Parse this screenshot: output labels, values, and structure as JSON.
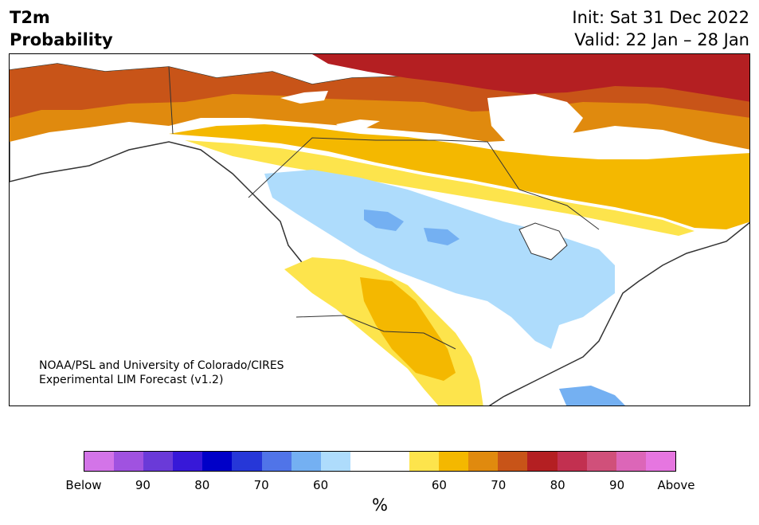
{
  "header": {
    "title_line1": "T2m",
    "title_line2": "Probability",
    "init": "Init: Sat 31 Dec 2022",
    "valid": "Valid: 22 Jan – 28 Jan"
  },
  "credit": {
    "line1": "NOAA/PSL and University of Colorado/CIRES",
    "line2": "Experimental LIM Forecast (v1.2)"
  },
  "colorbar": {
    "colors": [
      "#d374e8",
      "#a052e0",
      "#6a3ad8",
      "#3718d8",
      "#0000c8",
      "#2637d8",
      "#5074e8",
      "#74b0f2",
      "#aedcfc",
      "#ffffff",
      "#ffffff",
      "#fde44c",
      "#f4b800",
      "#e08a0e",
      "#c85418",
      "#b41f22",
      "#c23050",
      "#d0507a",
      "#dc66b8",
      "#e676e0"
    ],
    "labels": [
      "Below",
      "90",
      "80",
      "70",
      "60",
      "60",
      "70",
      "80",
      "90",
      "Above"
    ],
    "units": "%"
  },
  "map": {
    "region": "North America",
    "colors": {
      "above_90": "#b41f22",
      "above_70": "#c85418",
      "above_65": "#e08a0e",
      "above_60": "#f4b800",
      "above_55": "#fde44c",
      "below_55": "#aedcfc",
      "below_60": "#74b0f2",
      "land_outline": "#333333"
    }
  }
}
